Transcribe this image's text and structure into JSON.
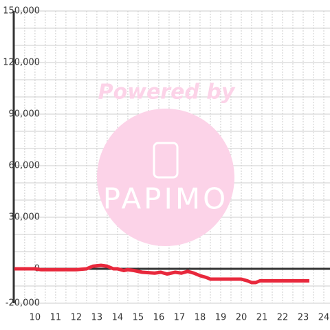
{
  "chart_data": {
    "type": "line",
    "watermark": {
      "title": "Powered by",
      "logo": "PAPIMO"
    },
    "x": [
      9.0,
      10.0,
      10.3,
      11.5,
      12.0,
      12.5,
      12.8,
      13.2,
      13.5,
      13.8,
      14.0,
      14.3,
      14.5,
      14.8,
      15.2,
      15.8,
      16.1,
      16.4,
      16.8,
      17.1,
      17.4,
      17.7,
      18.0,
      18.3,
      18.5,
      19.0,
      20.0,
      20.3,
      20.5,
      20.7,
      20.9,
      21.5,
      23.3
    ],
    "series": [
      {
        "color": "#e8283c",
        "values": [
          0,
          0,
          -500,
          -500,
          -500,
          0,
          1500,
          2000,
          1500,
          0,
          0,
          -1000,
          -500,
          -1000,
          -2000,
          -2500,
          -2000,
          -3000,
          -2000,
          -2500,
          -1500,
          -2500,
          -4000,
          -5000,
          -6000,
          -6000,
          -6000,
          -7000,
          -8000,
          -8000,
          -7000,
          -7000,
          -7000
        ]
      }
    ],
    "xlim": [
      8.97,
      24.3
    ],
    "xticks": [
      10,
      11,
      12,
      13,
      14,
      15,
      16,
      17,
      18,
      19,
      20,
      21,
      22,
      23,
      24
    ],
    "x_minor_ticks": [
      9.5,
      10.5,
      11.5,
      12.5,
      13.5,
      14.5,
      15.5,
      16.5,
      17.5,
      18.5,
      19.5,
      20.5,
      21.5,
      22.5,
      23.5
    ],
    "ylim": [
      -20000,
      150000
    ],
    "yticks": [
      {
        "value": -20000,
        "label": "-20,000"
      },
      0,
      {
        "value": 30000,
        "label": "30,000"
      },
      {
        "value": 60000,
        "label": "60,000"
      },
      {
        "value": 90000,
        "label": "90,000"
      },
      {
        "value": 120000,
        "label": "120,000"
      },
      {
        "value": 150000,
        "label": "150,000"
      }
    ],
    "y_minor_ticks": [
      -10000,
      10000,
      20000,
      40000,
      50000,
      70000,
      80000,
      100000,
      110000,
      130000,
      140000
    ],
    "grid": true
  }
}
